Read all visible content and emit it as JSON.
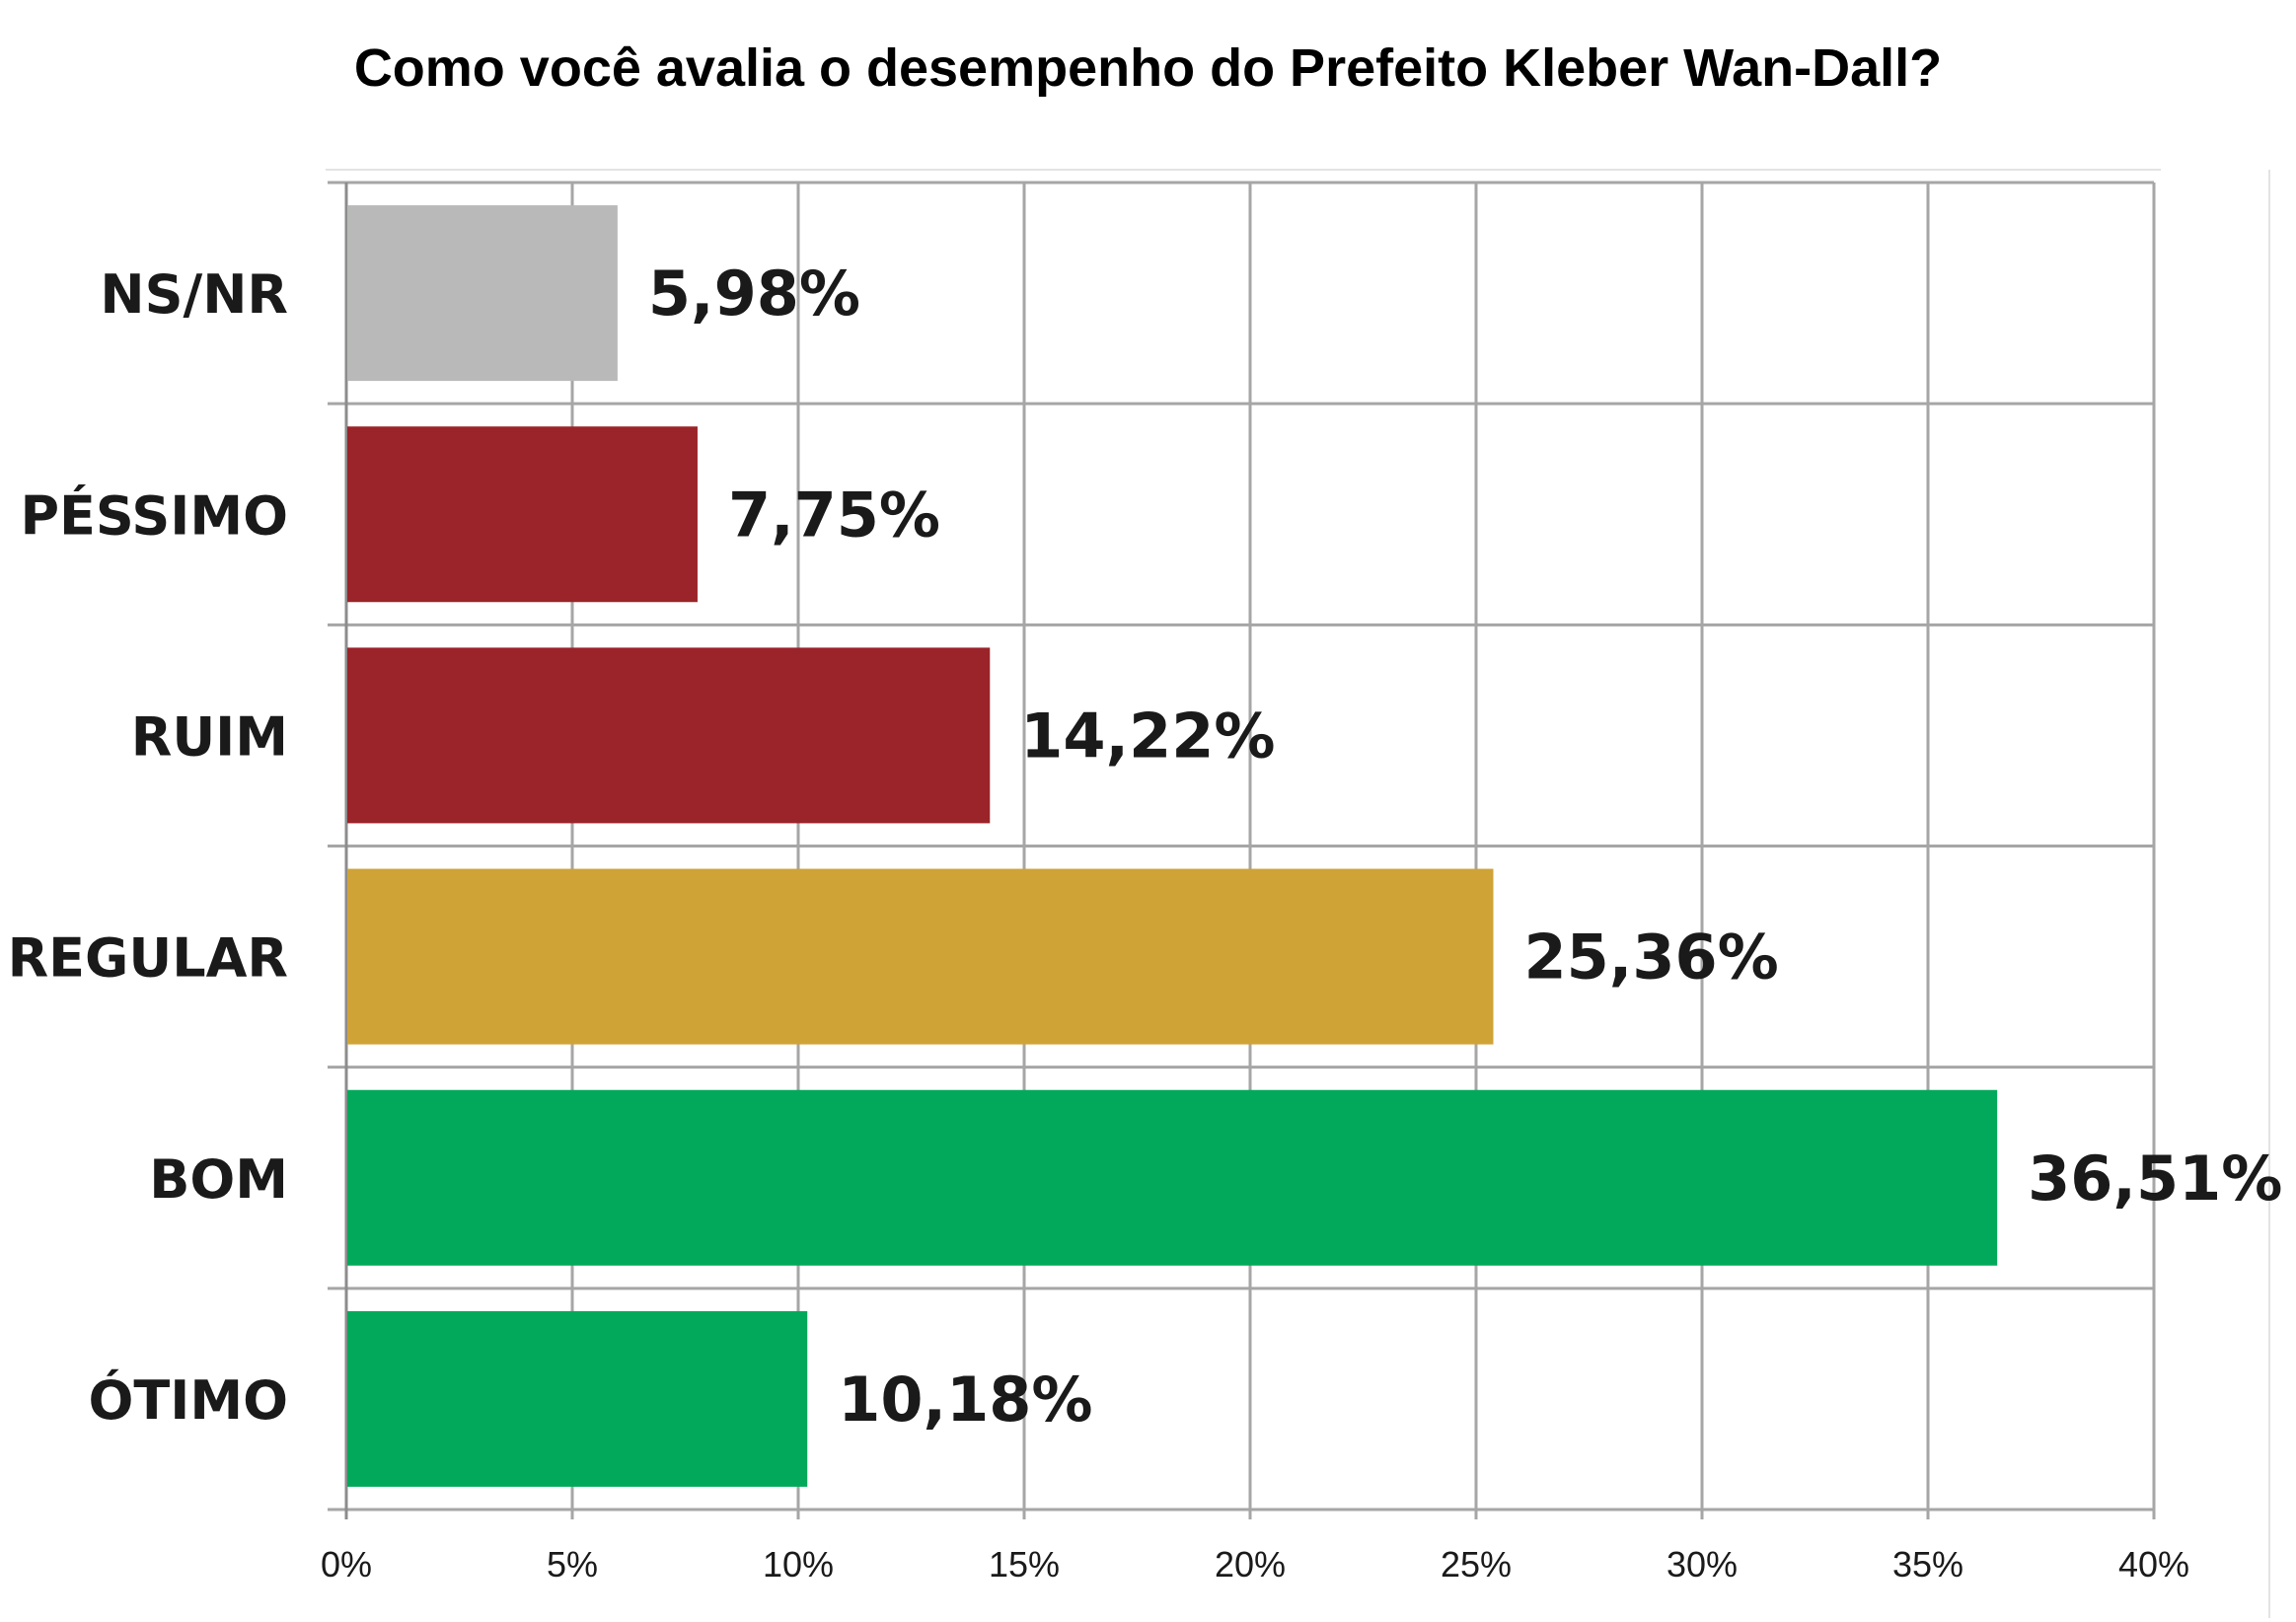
{
  "chart_data": {
    "type": "bar",
    "orientation": "horizontal",
    "title": "Como você avalia o desempenho do Prefeito Kleber Wan-Dall?",
    "categories": [
      "NS/NR",
      "PÉSSIMO",
      "RUIM",
      "REGULAR",
      "BOM",
      "ÓTIMO"
    ],
    "values": [
      5.98,
      7.75,
      14.22,
      25.36,
      36.51,
      10.18
    ],
    "value_labels": [
      "5,98%",
      "7,75%",
      "14,22%",
      "25,36%",
      "36,51%",
      "10,18%"
    ],
    "bar_colors": [
      "#b8b9b8",
      "#9a2429",
      "#9a2429",
      "#d0a337",
      "#03a95a",
      "#03a95a"
    ],
    "xlim": [
      0,
      40
    ],
    "xticks": [
      0,
      5,
      10,
      15,
      20,
      25,
      30,
      35,
      40
    ],
    "xtick_labels": [
      "0%",
      "5%",
      "10%",
      "15%",
      "20%",
      "25%",
      "30%",
      "35%",
      "40%"
    ],
    "xlabel": "",
    "ylabel": "",
    "grid": true,
    "legend": "none"
  }
}
